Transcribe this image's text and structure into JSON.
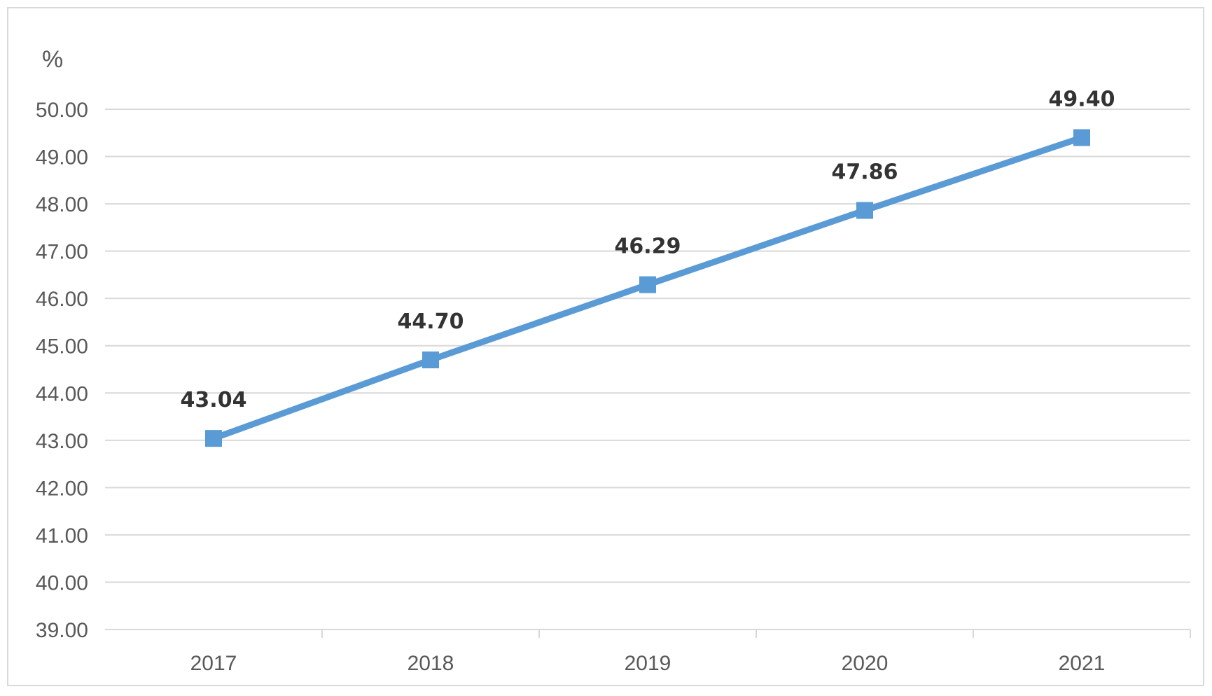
{
  "chart_data": {
    "type": "line",
    "y_unit_label": "%",
    "categories": [
      "2017",
      "2018",
      "2019",
      "2020",
      "2021"
    ],
    "series": [
      {
        "values": [
          43.04,
          44.7,
          46.29,
          47.86,
          49.4
        ],
        "color": "#5B9BD5",
        "marker": "square"
      }
    ],
    "data_labels": [
      "43.04",
      "44.70",
      "46.29",
      "47.86",
      "49.40"
    ],
    "ylim": [
      39.0,
      50.0
    ],
    "y_ticks": [
      "39.00",
      "40.00",
      "41.00",
      "42.00",
      "43.00",
      "44.00",
      "45.00",
      "46.00",
      "47.00",
      "48.00",
      "49.00",
      "50.00"
    ],
    "grid": true,
    "legend": "none"
  }
}
